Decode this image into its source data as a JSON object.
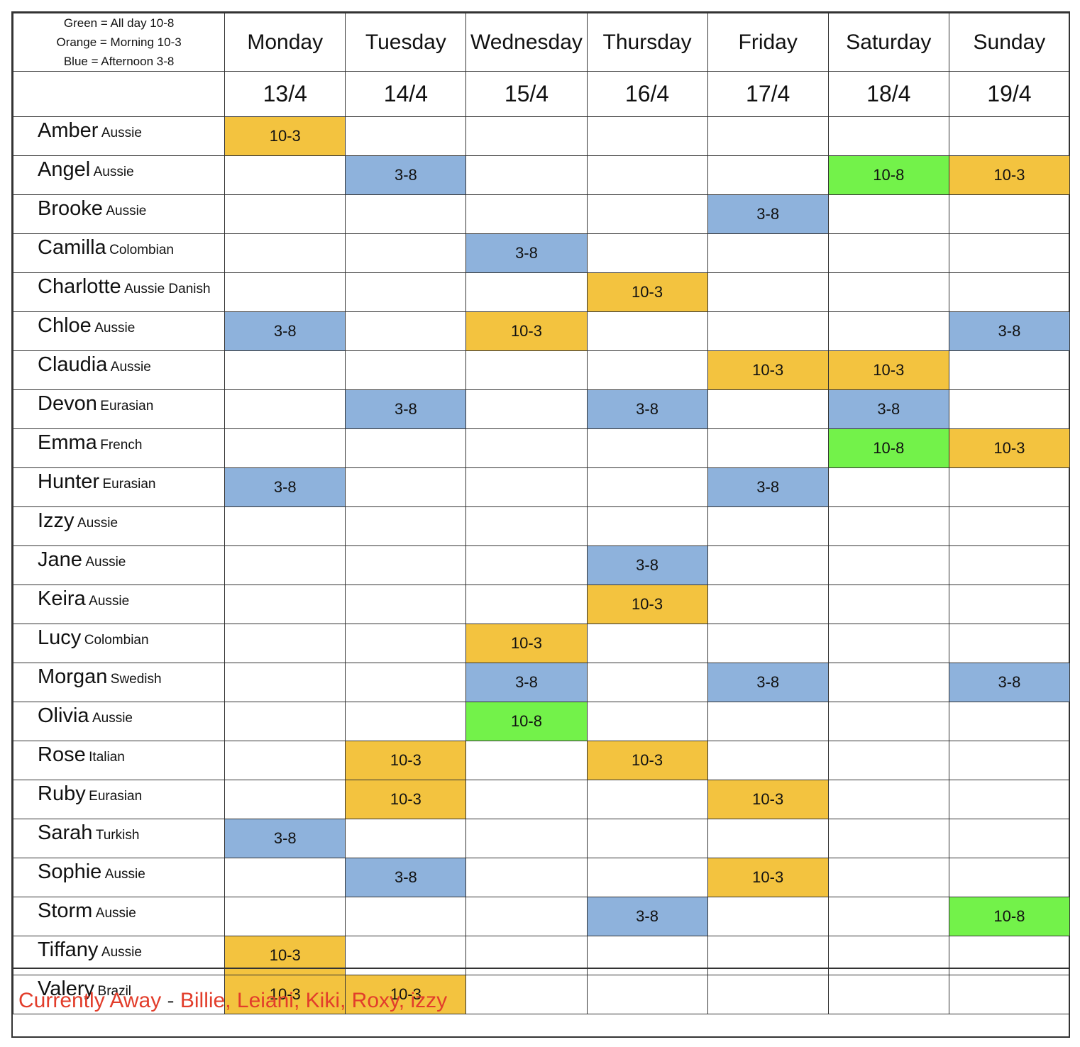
{
  "legend": {
    "line1": "Green = All day 10-8",
    "line2": "Orange = Morning 10-3",
    "line3": "Blue = Afternoon 3-8",
    "colors": {
      "green": "#73f24a",
      "orange": "#f3c33f",
      "blue": "#8eb2dc"
    }
  },
  "days": [
    "Monday",
    "Tuesday",
    "Wednesday",
    "Thursday",
    "Friday",
    "Saturday",
    "Sunday"
  ],
  "dates": [
    "13/4",
    "14/4",
    "15/4",
    "16/4",
    "17/4",
    "18/4",
    "19/4"
  ],
  "rows": [
    {
      "name": "Amber",
      "nationality": "Aussie",
      "shifts": [
        "10-3",
        "",
        "",
        "",
        "",
        "",
        ""
      ]
    },
    {
      "name": "Angel",
      "nationality": "Aussie",
      "shifts": [
        "",
        "3-8",
        "",
        "",
        "",
        "10-8",
        "10-3"
      ]
    },
    {
      "name": "Brooke",
      "nationality": "Aussie",
      "shifts": [
        "",
        "",
        "",
        "",
        "3-8",
        "",
        ""
      ]
    },
    {
      "name": "Camilla",
      "nationality": "Colombian",
      "shifts": [
        "",
        "",
        "3-8",
        "",
        "",
        "",
        ""
      ]
    },
    {
      "name": "Charlotte",
      "nationality": "Aussie Danish",
      "shifts": [
        "",
        "",
        "",
        "10-3",
        "",
        "",
        ""
      ]
    },
    {
      "name": "Chloe",
      "nationality": "Aussie",
      "shifts": [
        "3-8",
        "",
        "10-3",
        "",
        "",
        "",
        "3-8"
      ]
    },
    {
      "name": "Claudia",
      "nationality": "Aussie",
      "shifts": [
        "",
        "",
        "",
        "",
        "10-3",
        "10-3",
        ""
      ]
    },
    {
      "name": "Devon",
      "nationality": "Eurasian",
      "shifts": [
        "",
        "3-8",
        "",
        "3-8",
        "",
        "3-8",
        ""
      ]
    },
    {
      "name": "Emma",
      "nationality": "French",
      "shifts": [
        "",
        "",
        "",
        "",
        "",
        "10-8",
        "10-3"
      ]
    },
    {
      "name": "Hunter",
      "nationality": "Eurasian",
      "shifts": [
        "3-8",
        "",
        "",
        "",
        "3-8",
        "",
        ""
      ]
    },
    {
      "name": "Izzy",
      "nationality": "Aussie",
      "shifts": [
        "",
        "",
        "",
        "",
        "",
        "",
        ""
      ]
    },
    {
      "name": "Jane",
      "nationality": "Aussie",
      "shifts": [
        "",
        "",
        "",
        "3-8",
        "",
        "",
        ""
      ]
    },
    {
      "name": "Keira",
      "nationality": "Aussie",
      "shifts": [
        "",
        "",
        "",
        "10-3",
        "",
        "",
        ""
      ]
    },
    {
      "name": "Lucy",
      "nationality": "Colombian",
      "shifts": [
        "",
        "",
        "10-3",
        "",
        "",
        "",
        ""
      ]
    },
    {
      "name": "Morgan",
      "nationality": "Swedish",
      "shifts": [
        "",
        "",
        "3-8",
        "",
        "3-8",
        "",
        "3-8"
      ]
    },
    {
      "name": "Olivia",
      "nationality": "Aussie",
      "shifts": [
        "",
        "",
        "10-8",
        "",
        "",
        "",
        ""
      ]
    },
    {
      "name": "Rose",
      "nationality": "Italian",
      "shifts": [
        "",
        "10-3",
        "",
        "10-3",
        "",
        "",
        ""
      ]
    },
    {
      "name": "Ruby",
      "nationality": "Eurasian",
      "shifts": [
        "",
        "10-3",
        "",
        "",
        "10-3",
        "",
        ""
      ]
    },
    {
      "name": "Sarah",
      "nationality": "Turkish",
      "shifts": [
        "3-8",
        "",
        "",
        "",
        "",
        "",
        ""
      ]
    },
    {
      "name": "Sophie",
      "nationality": "Aussie",
      "shifts": [
        "",
        "3-8",
        "",
        "",
        "10-3",
        "",
        ""
      ]
    },
    {
      "name": "Storm",
      "nationality": "Aussie",
      "shifts": [
        "",
        "",
        "",
        "3-8",
        "",
        "",
        "10-8"
      ]
    },
    {
      "name": "Tiffany",
      "nationality": "Aussie",
      "shifts": [
        "10-3",
        "",
        "",
        "",
        "",
        "",
        ""
      ]
    },
    {
      "name": "Valery",
      "nationality": "Brazil",
      "shifts": [
        "10-3",
        "10-3",
        "",
        "",
        "",
        "",
        ""
      ]
    }
  ],
  "footer": {
    "label": "Currently Away",
    "separator": " - ",
    "names": "Billie, Leiani, Kiki, Roxy, izzy"
  }
}
